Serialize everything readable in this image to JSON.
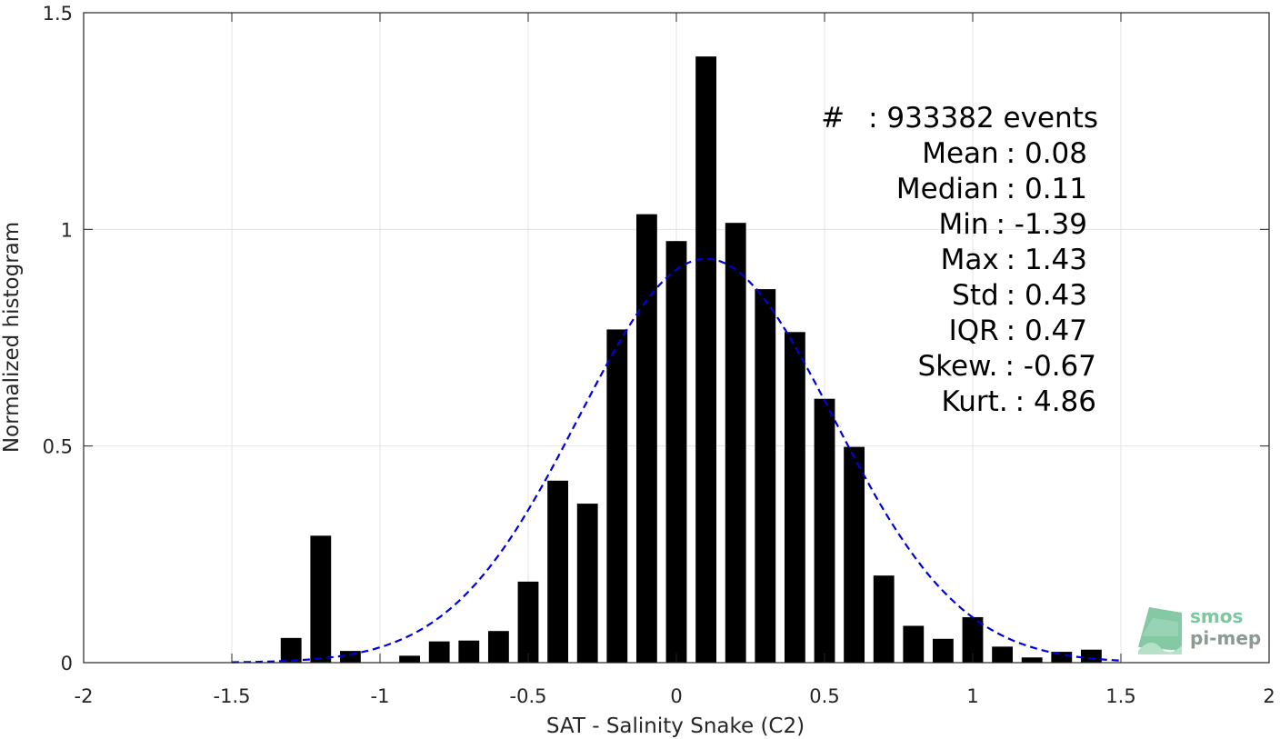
{
  "chart_data": {
    "type": "bar",
    "xlabel": "SAT - Salinity Snake (C2)",
    "ylabel": "Normalized histogram",
    "xlim": [
      -2,
      2
    ],
    "ylim": [
      0,
      1.5
    ],
    "x_ticks": [
      "-2",
      "-1.5",
      "-1",
      "-0.5",
      "0",
      "0.5",
      "1",
      "1.5",
      "2"
    ],
    "y_ticks": [
      "0",
      "0.5",
      "1",
      "1.5"
    ],
    "grid": true,
    "bar_width": 0.07,
    "bar_color": "#000000",
    "bars": [
      {
        "x": -1.3,
        "y": 0.057
      },
      {
        "x": -1.2,
        "y": 0.293
      },
      {
        "x": -1.1,
        "y": 0.027
      },
      {
        "x": -0.9,
        "y": 0.016
      },
      {
        "x": -0.8,
        "y": 0.049
      },
      {
        "x": -0.7,
        "y": 0.051
      },
      {
        "x": -0.6,
        "y": 0.073
      },
      {
        "x": -0.5,
        "y": 0.187
      },
      {
        "x": -0.4,
        "y": 0.42
      },
      {
        "x": -0.3,
        "y": 0.367
      },
      {
        "x": -0.2,
        "y": 0.769
      },
      {
        "x": -0.1,
        "y": 1.035
      },
      {
        "x": 0.0,
        "y": 0.973
      },
      {
        "x": 0.1,
        "y": 1.399
      },
      {
        "x": 0.2,
        "y": 1.015
      },
      {
        "x": 0.3,
        "y": 0.862
      },
      {
        "x": 0.4,
        "y": 0.763
      },
      {
        "x": 0.5,
        "y": 0.609
      },
      {
        "x": 0.6,
        "y": 0.498
      },
      {
        "x": 0.7,
        "y": 0.201
      },
      {
        "x": 0.8,
        "y": 0.085
      },
      {
        "x": 0.9,
        "y": 0.055
      },
      {
        "x": 1.0,
        "y": 0.105
      },
      {
        "x": 1.1,
        "y": 0.037
      },
      {
        "x": 1.2,
        "y": 0.012
      },
      {
        "x": 1.3,
        "y": 0.025
      },
      {
        "x": 1.4,
        "y": 0.03
      }
    ],
    "fit_curve": {
      "type": "gaussian",
      "mean": 0.1,
      "std": 0.43,
      "peak": 0.932,
      "x_range": [
        -1.5,
        1.5
      ],
      "color": "#0000dd",
      "style": "dashed"
    },
    "stats": {
      "lines": [
        {
          "label": "#",
          "value": ": 933382 events"
        },
        {
          "label": "Mean",
          "value": ": 0.08"
        },
        {
          "label": "Median",
          "value": ": 0.11"
        },
        {
          "label": "Min",
          "value": ": -1.39"
        },
        {
          "label": "Max",
          "value": ": 1.43"
        },
        {
          "label": "Std",
          "value": ": 0.43"
        },
        {
          "label": "IQR",
          "value": ": 0.47"
        },
        {
          "label": "Skew.",
          "value": ": -0.67"
        },
        {
          "label": "Kurt.",
          "value": ": 4.86"
        }
      ]
    },
    "logo": {
      "line1": "smos",
      "line2": "pi-mep",
      "color1": "#7dc7a0",
      "color2": "#8a9a90"
    }
  }
}
